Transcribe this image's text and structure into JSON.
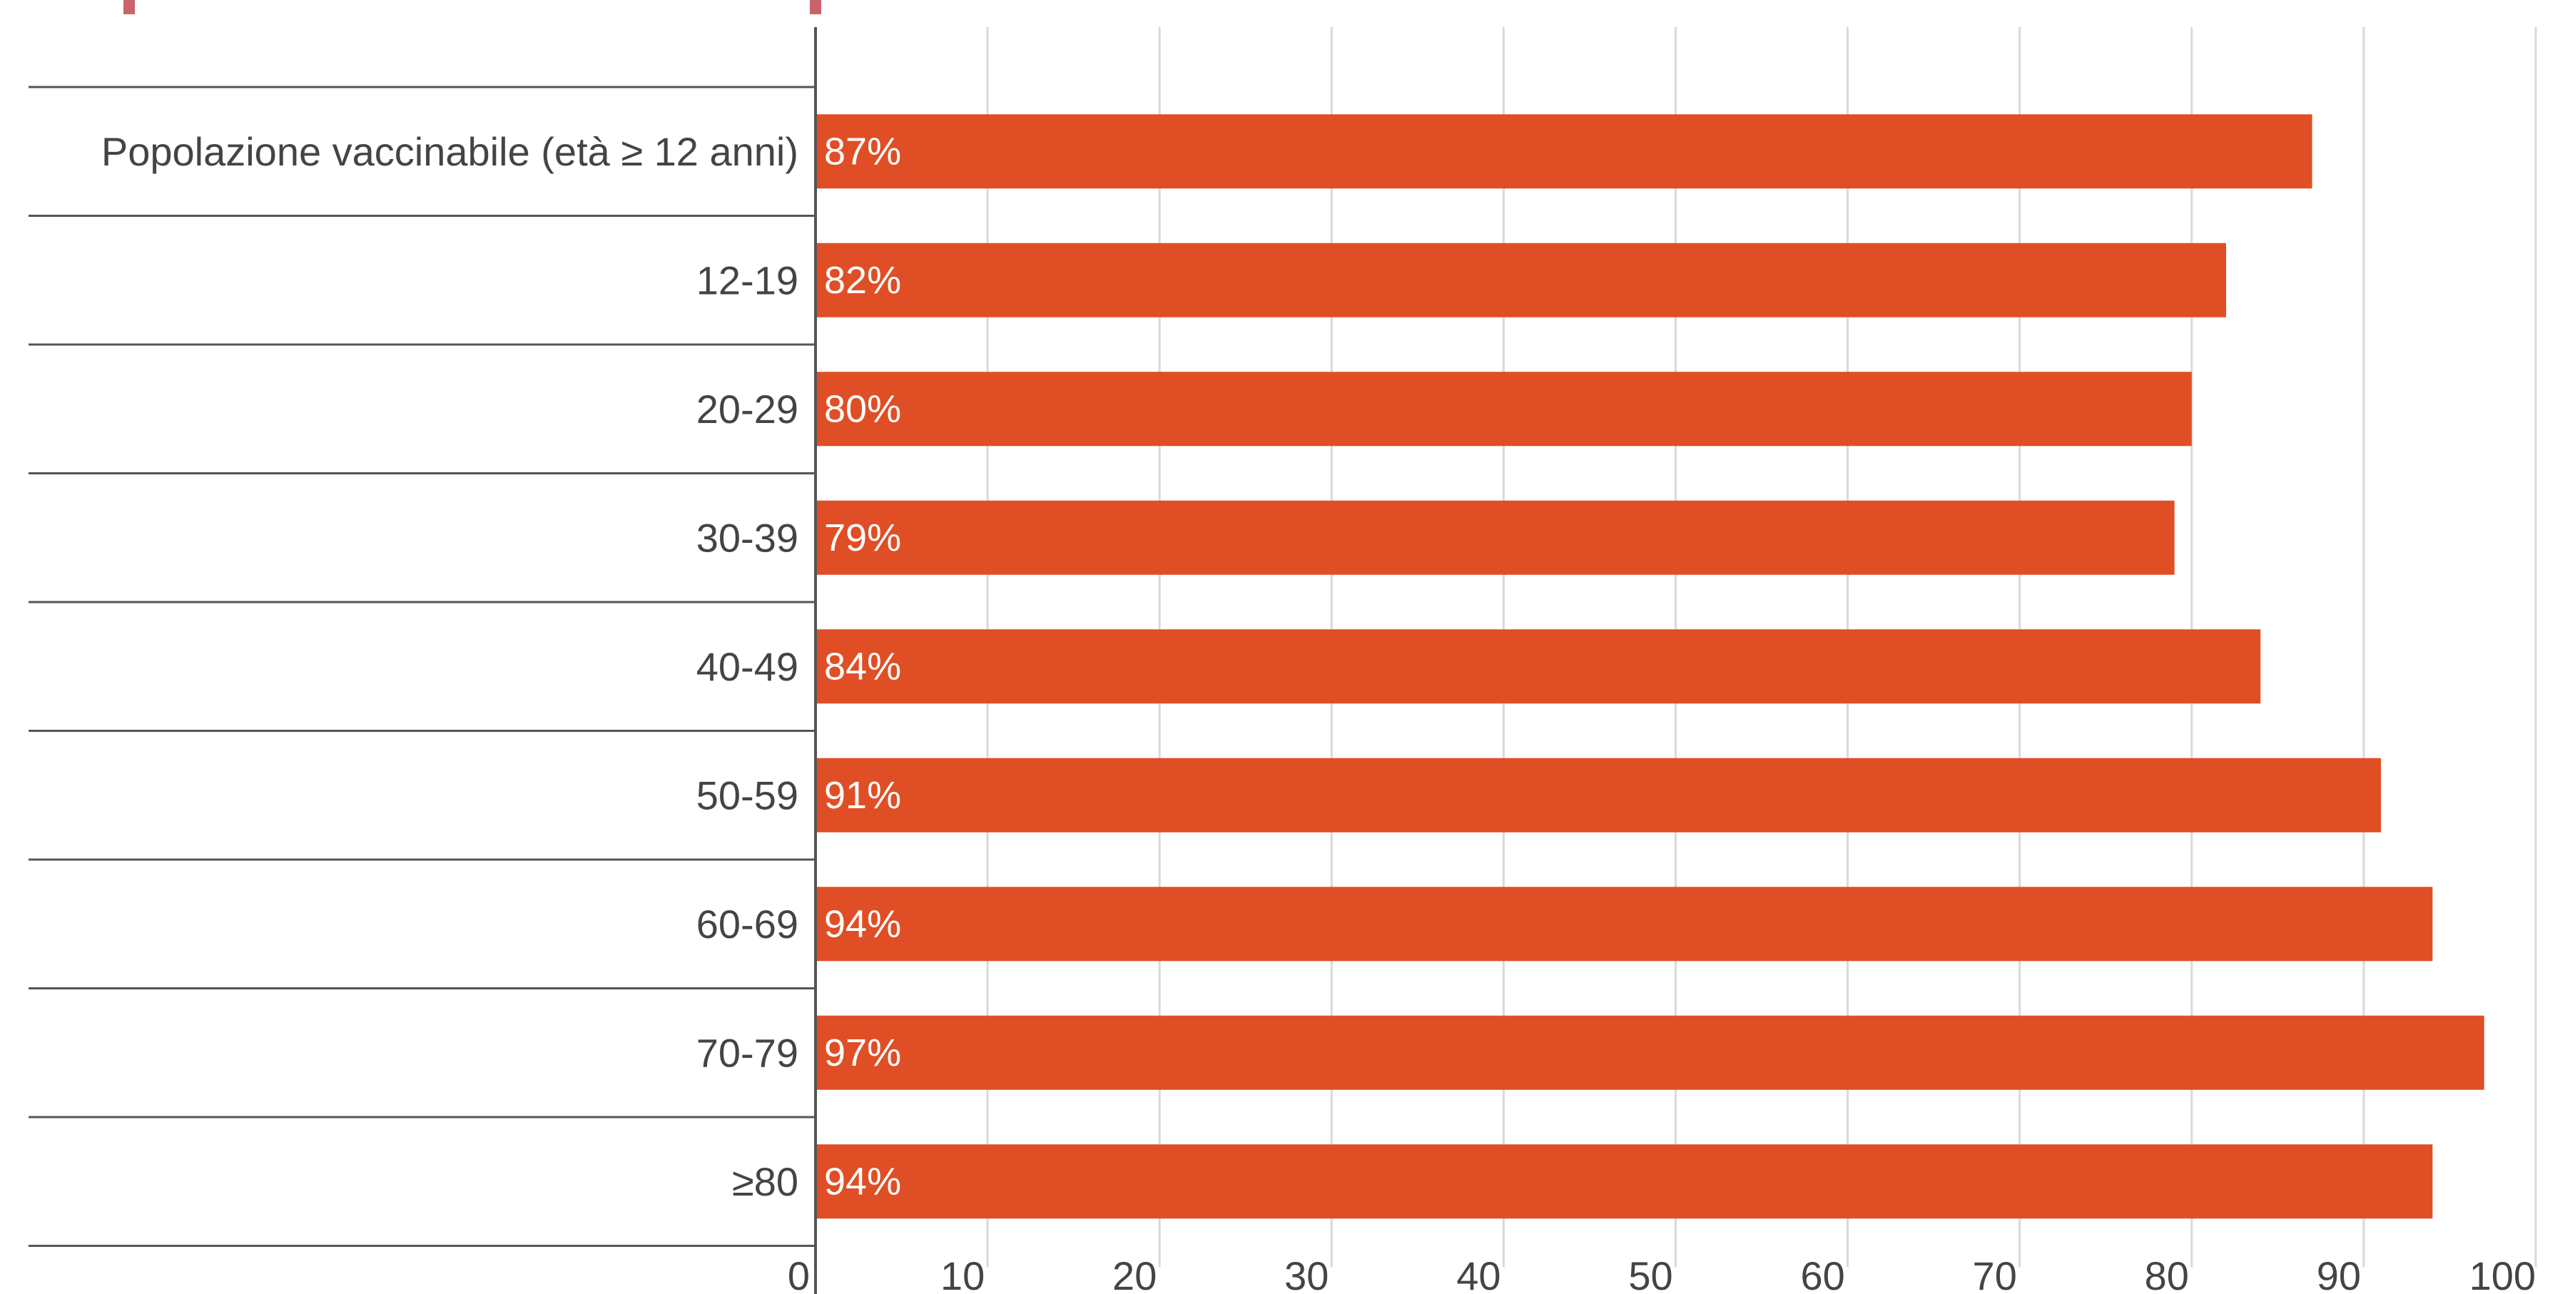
{
  "chart_data": {
    "type": "bar",
    "orientation": "horizontal",
    "title": "",
    "xlabel": "",
    "ylabel": "",
    "categories": [
      "Popolazione vaccinabile (età ≥ 12 anni)",
      "12-19",
      "20-29",
      "30-39",
      "40-49",
      "50-59",
      "60-69",
      "70-79",
      "≥80"
    ],
    "values": [
      87,
      82,
      80,
      79,
      84,
      91,
      94,
      97,
      94
    ],
    "data_labels": [
      "87%",
      "82%",
      "80%",
      "79%",
      "84%",
      "91%",
      "94%",
      "97%",
      "94%"
    ],
    "xlim": [
      0,
      100
    ],
    "x_ticks": [
      0,
      10,
      20,
      30,
      40,
      50,
      60,
      70,
      80,
      90,
      100
    ],
    "x_tick_labels": [
      "0",
      "10",
      "20",
      "30",
      "40",
      "50",
      "60",
      "70",
      "80",
      "90",
      "100"
    ],
    "grid": "vertical",
    "legend": "none",
    "colors": {
      "bar": "#e04e25",
      "grid": "#d9d9d9",
      "axis": "#555555",
      "separator": "#555555",
      "label_text": "#444444",
      "data_label_text": "#ffffff",
      "top_accent": "#c9646b"
    }
  }
}
